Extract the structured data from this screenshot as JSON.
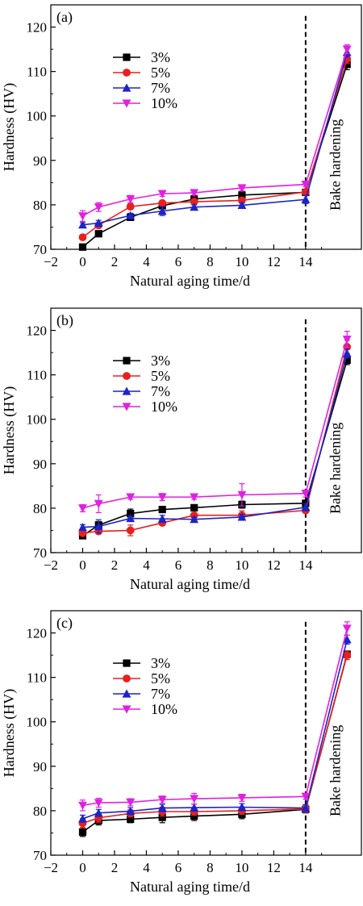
{
  "chart_data": [
    {
      "type": "line",
      "panel_label": "(a)",
      "xlabel": "Natural aging time/d",
      "ylabel": "Hardness (HV)",
      "xlim": [
        -2,
        17.5
      ],
      "ylim": [
        70,
        125
      ],
      "xticks": [
        "−2",
        "0",
        "2",
        "4",
        "6",
        "8",
        "10",
        "12",
        "14"
      ],
      "yticks": [
        "70",
        "80",
        "90",
        "100",
        "110",
        "120"
      ],
      "annotation": "Bake hardening",
      "series": [
        {
          "name": "3%",
          "color": "#000000",
          "marker": "square",
          "x": [
            0,
            1,
            3,
            5,
            7,
            10,
            14,
            16.6
          ],
          "y": [
            70.5,
            73.5,
            77.2,
            79.8,
            81.3,
            82.2,
            82.8,
            111.6
          ],
          "err": [
            0.6,
            0.5,
            0.5,
            0.6,
            0.5,
            0.6,
            0.5,
            1.2
          ]
        },
        {
          "name": "5%",
          "color": "#e8201d",
          "marker": "circle",
          "x": [
            0,
            1,
            3,
            5,
            7,
            10,
            14,
            16.6
          ],
          "y": [
            72.7,
            75.4,
            79.6,
            80.4,
            80.7,
            81.0,
            82.9,
            112.8
          ],
          "err": [
            0.5,
            0.6,
            0.6,
            0.5,
            0.5,
            0.5,
            0.5,
            1.0
          ]
        },
        {
          "name": "7%",
          "color": "#1c24c6",
          "marker": "triangle-up",
          "x": [
            0,
            1,
            3,
            5,
            7,
            10,
            14,
            16.6
          ],
          "y": [
            75.5,
            75.9,
            77.6,
            78.6,
            79.5,
            79.9,
            81.2,
            114.3
          ],
          "err": [
            0.5,
            0.6,
            0.5,
            1.0,
            0.5,
            0.5,
            0.9,
            1.0
          ]
        },
        {
          "name": "10%",
          "color": "#e020e0",
          "marker": "triangle-down",
          "x": [
            0,
            1,
            3,
            5,
            7,
            10,
            14,
            16.6
          ],
          "y": [
            77.5,
            79.5,
            81.3,
            82.5,
            82.7,
            83.8,
            84.6,
            115.0
          ],
          "err": [
            1.2,
            1.0,
            0.8,
            0.6,
            0.5,
            0.6,
            0.5,
            1.0
          ]
        }
      ]
    },
    {
      "type": "line",
      "panel_label": "(b)",
      "xlabel": "Natural aging time/d",
      "ylabel": "Hardness (HV)",
      "xlim": [
        -2,
        17.5
      ],
      "ylim": [
        70,
        125
      ],
      "xticks": [
        "−2",
        "0",
        "2",
        "4",
        "6",
        "8",
        "10",
        "12",
        "14"
      ],
      "yticks": [
        "70",
        "80",
        "90",
        "100",
        "110",
        "120"
      ],
      "annotation": "Bake hardening",
      "series": [
        {
          "name": "3%",
          "color": "#000000",
          "marker": "square",
          "x": [
            0,
            1,
            3,
            5,
            7,
            10,
            14,
            16.6
          ],
          "y": [
            73.8,
            76.2,
            78.8,
            79.7,
            80.1,
            80.8,
            81.1,
            113.3
          ],
          "err": [
            0.6,
            0.8,
            1.0,
            0.6,
            0.5,
            0.8,
            0.5,
            1.0
          ]
        },
        {
          "name": "5%",
          "color": "#e8201d",
          "marker": "circle",
          "x": [
            0,
            1,
            3,
            5,
            7,
            10,
            14,
            16.6
          ],
          "y": [
            74.4,
            74.8,
            75.0,
            76.7,
            78.4,
            78.4,
            79.5,
            116.3
          ],
          "err": [
            0.6,
            0.5,
            1.2,
            0.6,
            0.5,
            1.0,
            0.5,
            1.5
          ]
        },
        {
          "name": "7%",
          "color": "#1c24c6",
          "marker": "triangle-up",
          "x": [
            0,
            1,
            3,
            5,
            7,
            10,
            14,
            16.6
          ],
          "y": [
            75.7,
            75.9,
            77.7,
            77.6,
            77.5,
            78.0,
            80.2,
            114.8
          ],
          "err": [
            0.6,
            1.5,
            0.5,
            0.8,
            0.5,
            0.6,
            0.8,
            1.0
          ]
        },
        {
          "name": "10%",
          "color": "#e020e0",
          "marker": "triangle-down",
          "x": [
            0,
            1,
            3,
            5,
            7,
            10,
            14,
            16.6
          ],
          "y": [
            80.0,
            81.0,
            82.5,
            82.5,
            82.5,
            83.0,
            83.3,
            118.0
          ],
          "err": [
            0.8,
            2.0,
            0.5,
            0.8,
            0.5,
            2.5,
            0.8,
            1.8
          ]
        }
      ]
    },
    {
      "type": "line",
      "panel_label": "(c)",
      "xlabel": "Natural aging time/d",
      "ylabel": "Hardness (HV)",
      "xlim": [
        -2,
        17.5
      ],
      "ylim": [
        70,
        125
      ],
      "xticks": [
        "−2",
        "0",
        "2",
        "4",
        "6",
        "8",
        "10",
        "12",
        "14"
      ],
      "yticks": [
        "70",
        "80",
        "90",
        "100",
        "110",
        "120"
      ],
      "annotation": "Bake hardening",
      "series": [
        {
          "name": "3%",
          "color": "#000000",
          "marker": "square",
          "x": [
            0,
            1,
            3,
            5,
            7,
            10,
            14,
            16.6
          ],
          "y": [
            75.2,
            77.8,
            78.1,
            78.5,
            78.8,
            79.2,
            80.3,
            115.2
          ],
          "err": [
            1.0,
            1.0,
            0.8,
            1.2,
            1.0,
            1.0,
            0.8,
            0.8
          ]
        },
        {
          "name": "5%",
          "color": "#e8201d",
          "marker": "circle",
          "x": [
            0,
            1,
            3,
            5,
            7,
            10,
            14,
            16.6
          ],
          "y": [
            77.2,
            78.4,
            79.4,
            79.8,
            79.8,
            80.0,
            80.4,
            115.0
          ],
          "err": [
            1.0,
            1.0,
            0.8,
            1.0,
            0.8,
            0.8,
            0.8,
            1.0
          ]
        },
        {
          "name": "7%",
          "color": "#1c24c6",
          "marker": "triangle-up",
          "x": [
            0,
            1,
            3,
            5,
            7,
            10,
            14,
            16.6
          ],
          "y": [
            78.2,
            79.5,
            79.9,
            80.6,
            80.7,
            80.8,
            80.6,
            118.5
          ],
          "err": [
            0.8,
            0.8,
            0.8,
            0.8,
            0.8,
            0.8,
            0.8,
            1.0
          ]
        },
        {
          "name": "10%",
          "color": "#e020e0",
          "marker": "triangle-down",
          "x": [
            0,
            1,
            3,
            5,
            7,
            10,
            14,
            16.6
          ],
          "y": [
            81.2,
            81.8,
            81.9,
            82.5,
            82.7,
            82.9,
            83.2,
            121.0
          ],
          "err": [
            1.2,
            1.0,
            0.8,
            0.8,
            1.2,
            0.8,
            0.6,
            1.5
          ]
        }
      ]
    }
  ]
}
